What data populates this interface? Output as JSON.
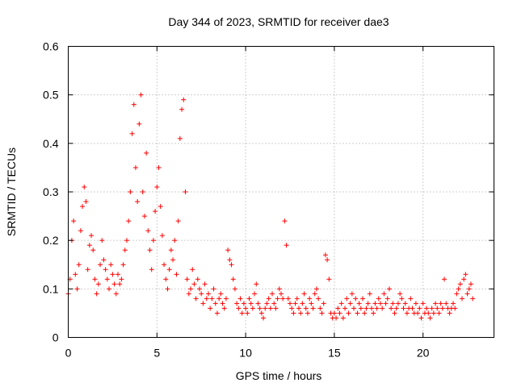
{
  "chart_data": {
    "type": "scatter",
    "title": "Day 344 of 2023, SRMTID for receiver dae3",
    "xlabel": "GPS time / hours",
    "ylabel": "SRMTID / TECUs",
    "xlim": [
      0,
      24
    ],
    "ylim": [
      0,
      0.6
    ],
    "x_ticks": [
      0,
      5,
      10,
      15,
      20
    ],
    "x_tick_labels": [
      "0",
      "5",
      "10",
      "15",
      "20"
    ],
    "y_ticks": [
      0,
      0.1,
      0.2,
      0.3,
      0.4,
      0.5,
      0.6
    ],
    "y_tick_labels": [
      "0",
      "0.1",
      "0.2",
      "0.3",
      "0.4",
      "0.5",
      "0.6"
    ],
    "grid": true,
    "marker": "plus",
    "color": "#ff0000",
    "series": [
      {
        "name": "SRMTID",
        "x": [
          0.0,
          0.1,
          0.2,
          0.3,
          0.4,
          0.5,
          0.6,
          0.7,
          0.8,
          0.9,
          1.0,
          1.1,
          1.2,
          1.3,
          1.4,
          1.5,
          1.6,
          1.7,
          1.8,
          1.9,
          2.0,
          2.1,
          2.2,
          2.3,
          2.4,
          2.5,
          2.6,
          2.7,
          2.8,
          2.9,
          3.0,
          3.1,
          3.2,
          3.3,
          3.4,
          3.5,
          3.6,
          3.7,
          3.8,
          3.9,
          4.0,
          4.1,
          4.2,
          4.3,
          4.4,
          4.5,
          4.6,
          4.7,
          4.8,
          4.9,
          5.0,
          5.1,
          5.2,
          5.3,
          5.4,
          5.5,
          5.6,
          5.7,
          5.8,
          5.9,
          6.0,
          6.1,
          6.2,
          6.3,
          6.4,
          6.5,
          6.6,
          6.7,
          6.8,
          6.9,
          7.0,
          7.1,
          7.2,
          7.3,
          7.4,
          7.5,
          7.6,
          7.7,
          7.8,
          7.9,
          8.0,
          8.1,
          8.2,
          8.3,
          8.4,
          8.5,
          8.6,
          8.7,
          8.8,
          8.9,
          9.0,
          9.1,
          9.2,
          9.3,
          9.4,
          9.5,
          9.6,
          9.7,
          9.8,
          9.9,
          10.0,
          10.1,
          10.2,
          10.3,
          10.4,
          10.5,
          10.6,
          10.7,
          10.8,
          10.9,
          11.0,
          11.1,
          11.2,
          11.3,
          11.4,
          11.5,
          11.6,
          11.7,
          11.8,
          11.9,
          12.0,
          12.1,
          12.2,
          12.3,
          12.4,
          12.5,
          12.6,
          12.7,
          12.8,
          12.9,
          13.0,
          13.1,
          13.2,
          13.3,
          13.4,
          13.5,
          13.6,
          13.7,
          13.8,
          13.9,
          14.0,
          14.1,
          14.2,
          14.3,
          14.4,
          14.5,
          14.6,
          14.7,
          14.8,
          14.9,
          15.0,
          15.1,
          15.2,
          15.3,
          15.4,
          15.5,
          15.6,
          15.7,
          15.8,
          15.9,
          16.0,
          16.1,
          16.2,
          16.3,
          16.4,
          16.5,
          16.6,
          16.7,
          16.8,
          16.9,
          17.0,
          17.1,
          17.2,
          17.3,
          17.4,
          17.5,
          17.6,
          17.7,
          17.8,
          17.9,
          18.0,
          18.1,
          18.2,
          18.3,
          18.4,
          18.5,
          18.6,
          18.7,
          18.8,
          18.9,
          19.0,
          19.1,
          19.2,
          19.3,
          19.4,
          19.5,
          19.6,
          19.7,
          19.8,
          19.9,
          20.0,
          20.1,
          20.2,
          20.3,
          20.4,
          20.5,
          20.6,
          20.7,
          20.8,
          20.9,
          21.0,
          21.1,
          21.2,
          21.3,
          21.4,
          21.5,
          21.6,
          21.7,
          21.8,
          21.9,
          22.0,
          22.1,
          22.2,
          22.3,
          22.4,
          22.5,
          22.6,
          22.7,
          22.8
        ],
        "y": [
          0.09,
          0.12,
          0.2,
          0.24,
          0.13,
          0.1,
          0.15,
          0.22,
          0.27,
          0.31,
          0.28,
          0.14,
          0.19,
          0.21,
          0.18,
          0.12,
          0.09,
          0.11,
          0.15,
          0.2,
          0.16,
          0.14,
          0.12,
          0.1,
          0.15,
          0.13,
          0.11,
          0.09,
          0.13,
          0.11,
          0.12,
          0.15,
          0.18,
          0.2,
          0.24,
          0.3,
          0.42,
          0.48,
          0.35,
          0.28,
          0.44,
          0.5,
          0.3,
          0.25,
          0.38,
          0.22,
          0.18,
          0.14,
          0.2,
          0.26,
          0.31,
          0.35,
          0.27,
          0.21,
          0.15,
          0.12,
          0.1,
          0.14,
          0.18,
          0.16,
          0.2,
          0.13,
          0.24,
          0.41,
          0.47,
          0.49,
          0.3,
          0.12,
          0.09,
          0.1,
          0.14,
          0.11,
          0.08,
          0.12,
          0.1,
          0.09,
          0.07,
          0.11,
          0.08,
          0.09,
          0.06,
          0.08,
          0.1,
          0.07,
          0.05,
          0.08,
          0.09,
          0.07,
          0.06,
          0.08,
          0.18,
          0.16,
          0.15,
          0.12,
          0.1,
          0.07,
          0.06,
          0.08,
          0.05,
          0.07,
          0.06,
          0.05,
          0.08,
          0.07,
          0.06,
          0.09,
          0.11,
          0.07,
          0.06,
          0.05,
          0.04,
          0.06,
          0.07,
          0.08,
          0.06,
          0.09,
          0.07,
          0.06,
          0.08,
          0.1,
          0.09,
          0.08,
          0.24,
          0.19,
          0.08,
          0.07,
          0.06,
          0.05,
          0.07,
          0.08,
          0.06,
          0.05,
          0.07,
          0.09,
          0.06,
          0.05,
          0.08,
          0.07,
          0.06,
          0.09,
          0.1,
          0.08,
          0.06,
          0.05,
          0.07,
          0.17,
          0.16,
          0.12,
          0.05,
          0.04,
          0.05,
          0.04,
          0.06,
          0.05,
          0.07,
          0.04,
          0.06,
          0.08,
          0.05,
          0.07,
          0.09,
          0.06,
          0.08,
          0.05,
          0.07,
          0.06,
          0.08,
          0.05,
          0.06,
          0.07,
          0.09,
          0.06,
          0.05,
          0.07,
          0.06,
          0.08,
          0.07,
          0.06,
          0.09,
          0.07,
          0.08,
          0.1,
          0.06,
          0.07,
          0.05,
          0.06,
          0.07,
          0.09,
          0.08,
          0.06,
          0.07,
          0.05,
          0.06,
          0.08,
          0.06,
          0.05,
          0.07,
          0.05,
          0.06,
          0.04,
          0.07,
          0.05,
          0.06,
          0.05,
          0.04,
          0.06,
          0.05,
          0.07,
          0.06,
          0.05,
          0.07,
          0.06,
          0.12,
          0.07,
          0.06,
          0.05,
          0.06,
          0.07,
          0.06,
          0.09,
          0.1,
          0.11,
          0.08,
          0.12,
          0.13,
          0.09,
          0.1,
          0.11,
          0.08
        ]
      }
    ]
  }
}
